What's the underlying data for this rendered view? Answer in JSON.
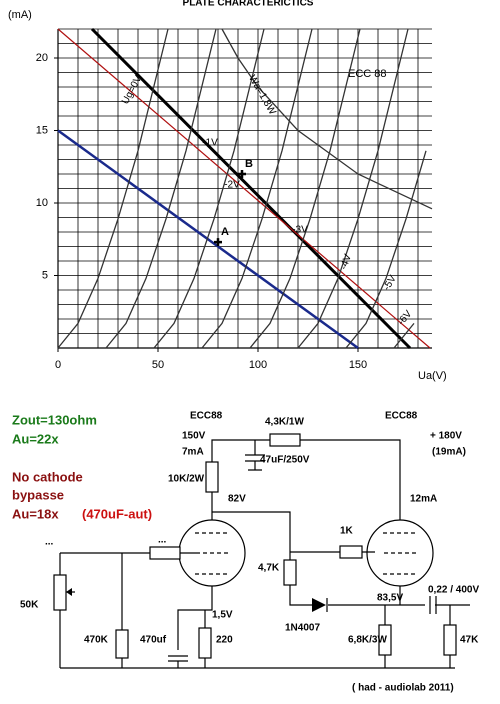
{
  "chart_data": {
    "type": "line",
    "title": "PLATE CHARACTERICTICS",
    "ylabel": "(mA)",
    "xlabel": "Ua(V)",
    "tube_label": "ECC 88",
    "xlim": [
      0,
      187
    ],
    "ylim": [
      0,
      22
    ],
    "xticks": [
      0,
      50,
      100,
      150
    ],
    "yticks": [
      5,
      10,
      15,
      20
    ],
    "xgrid": [
      10,
      20,
      30,
      40,
      50,
      60,
      70,
      80,
      90,
      100,
      110,
      120,
      130,
      140,
      150,
      160,
      170,
      180
    ],
    "ygrid": [
      1,
      2,
      3,
      4,
      5,
      6,
      7,
      8,
      9,
      10,
      11,
      12,
      13,
      14,
      15,
      16,
      17,
      18,
      19,
      20,
      21,
      22
    ],
    "series": [
      {
        "color": "#1a2a8c",
        "x": [
          0,
          150
        ],
        "values": [
          15,
          0
        ]
      },
      {
        "color": "#000000",
        "x": [
          17,
          176
        ],
        "values": [
          22,
          0
        ]
      },
      {
        "color": "#b01010",
        "x": [
          0,
          186
        ],
        "values": [
          22,
          0
        ]
      },
      {
        "color": "#333333",
        "x": [
          0,
          10,
          20,
          30,
          40,
          55
        ],
        "values": [
          0,
          1.7,
          4.8,
          8.9,
          13.6,
          22
        ]
      },
      {
        "color": "#333333",
        "x": [
          24,
          34,
          44,
          54,
          64,
          79
        ],
        "values": [
          0,
          1.7,
          4.8,
          8.9,
          13.6,
          22
        ]
      },
      {
        "color": "#333333",
        "x": [
          48,
          58,
          68,
          78,
          88,
          103
        ],
        "values": [
          0,
          1.7,
          4.8,
          8.9,
          13.6,
          22
        ]
      },
      {
        "color": "#333333",
        "x": [
          72,
          82,
          92,
          102,
          112,
          127
        ],
        "values": [
          0,
          1.7,
          4.8,
          8.9,
          13.6,
          22
        ]
      },
      {
        "color": "#333333",
        "x": [
          96,
          106,
          116,
          126,
          136,
          151
        ],
        "values": [
          0,
          1.7,
          4.8,
          8.9,
          13.6,
          22
        ]
      },
      {
        "color": "#333333",
        "x": [
          120,
          130,
          140,
          150,
          160,
          175
        ],
        "values": [
          0,
          1.7,
          4.8,
          8.9,
          13.6,
          22
        ]
      },
      {
        "color": "#333333",
        "x": [
          144,
          154,
          164,
          174,
          184
        ],
        "values": [
          0,
          1.7,
          4.8,
          8.9,
          13.6
        ]
      },
      {
        "color": "#333333",
        "x": [
          168,
          178
        ],
        "values": [
          0,
          1.7
        ]
      },
      {
        "color": "#333333",
        "x": [
          82,
          90,
          100,
          120,
          150,
          187
        ],
        "values": [
          22,
          20,
          18,
          15,
          12,
          9.6
        ]
      }
    ],
    "curve_labels": [
      "Ug=0V",
      "Wa=1,8W",
      "-1V",
      "-2V",
      "-3V",
      "-4V",
      "-5V",
      "-6V"
    ],
    "points": [
      {
        "label": "A",
        "x": 80,
        "y": 7.3
      },
      {
        "label": "B",
        "x": 92,
        "y": 12
      }
    ]
  },
  "schematic": {
    "labels": [
      "Zout=130ohm",
      "Au=22x",
      "No cathode",
      "bypasse",
      "Au=18x",
      "(470uF-aut)",
      "ECC88",
      "ECC88",
      "150V",
      "7mA",
      "4,3K/1W",
      "+ 180V",
      "(19mA)",
      "47uF/250V",
      "10K/2W",
      "82V",
      "12mA",
      "1K",
      "4,7K",
      "...",
      "...",
      "50K",
      "470K",
      "470uf",
      "220",
      "1,5V",
      "1N4007",
      "83,5V",
      "0,22 / 400V",
      "6,8K/3W",
      "47K",
      "( had - audiolab 2011)"
    ]
  }
}
